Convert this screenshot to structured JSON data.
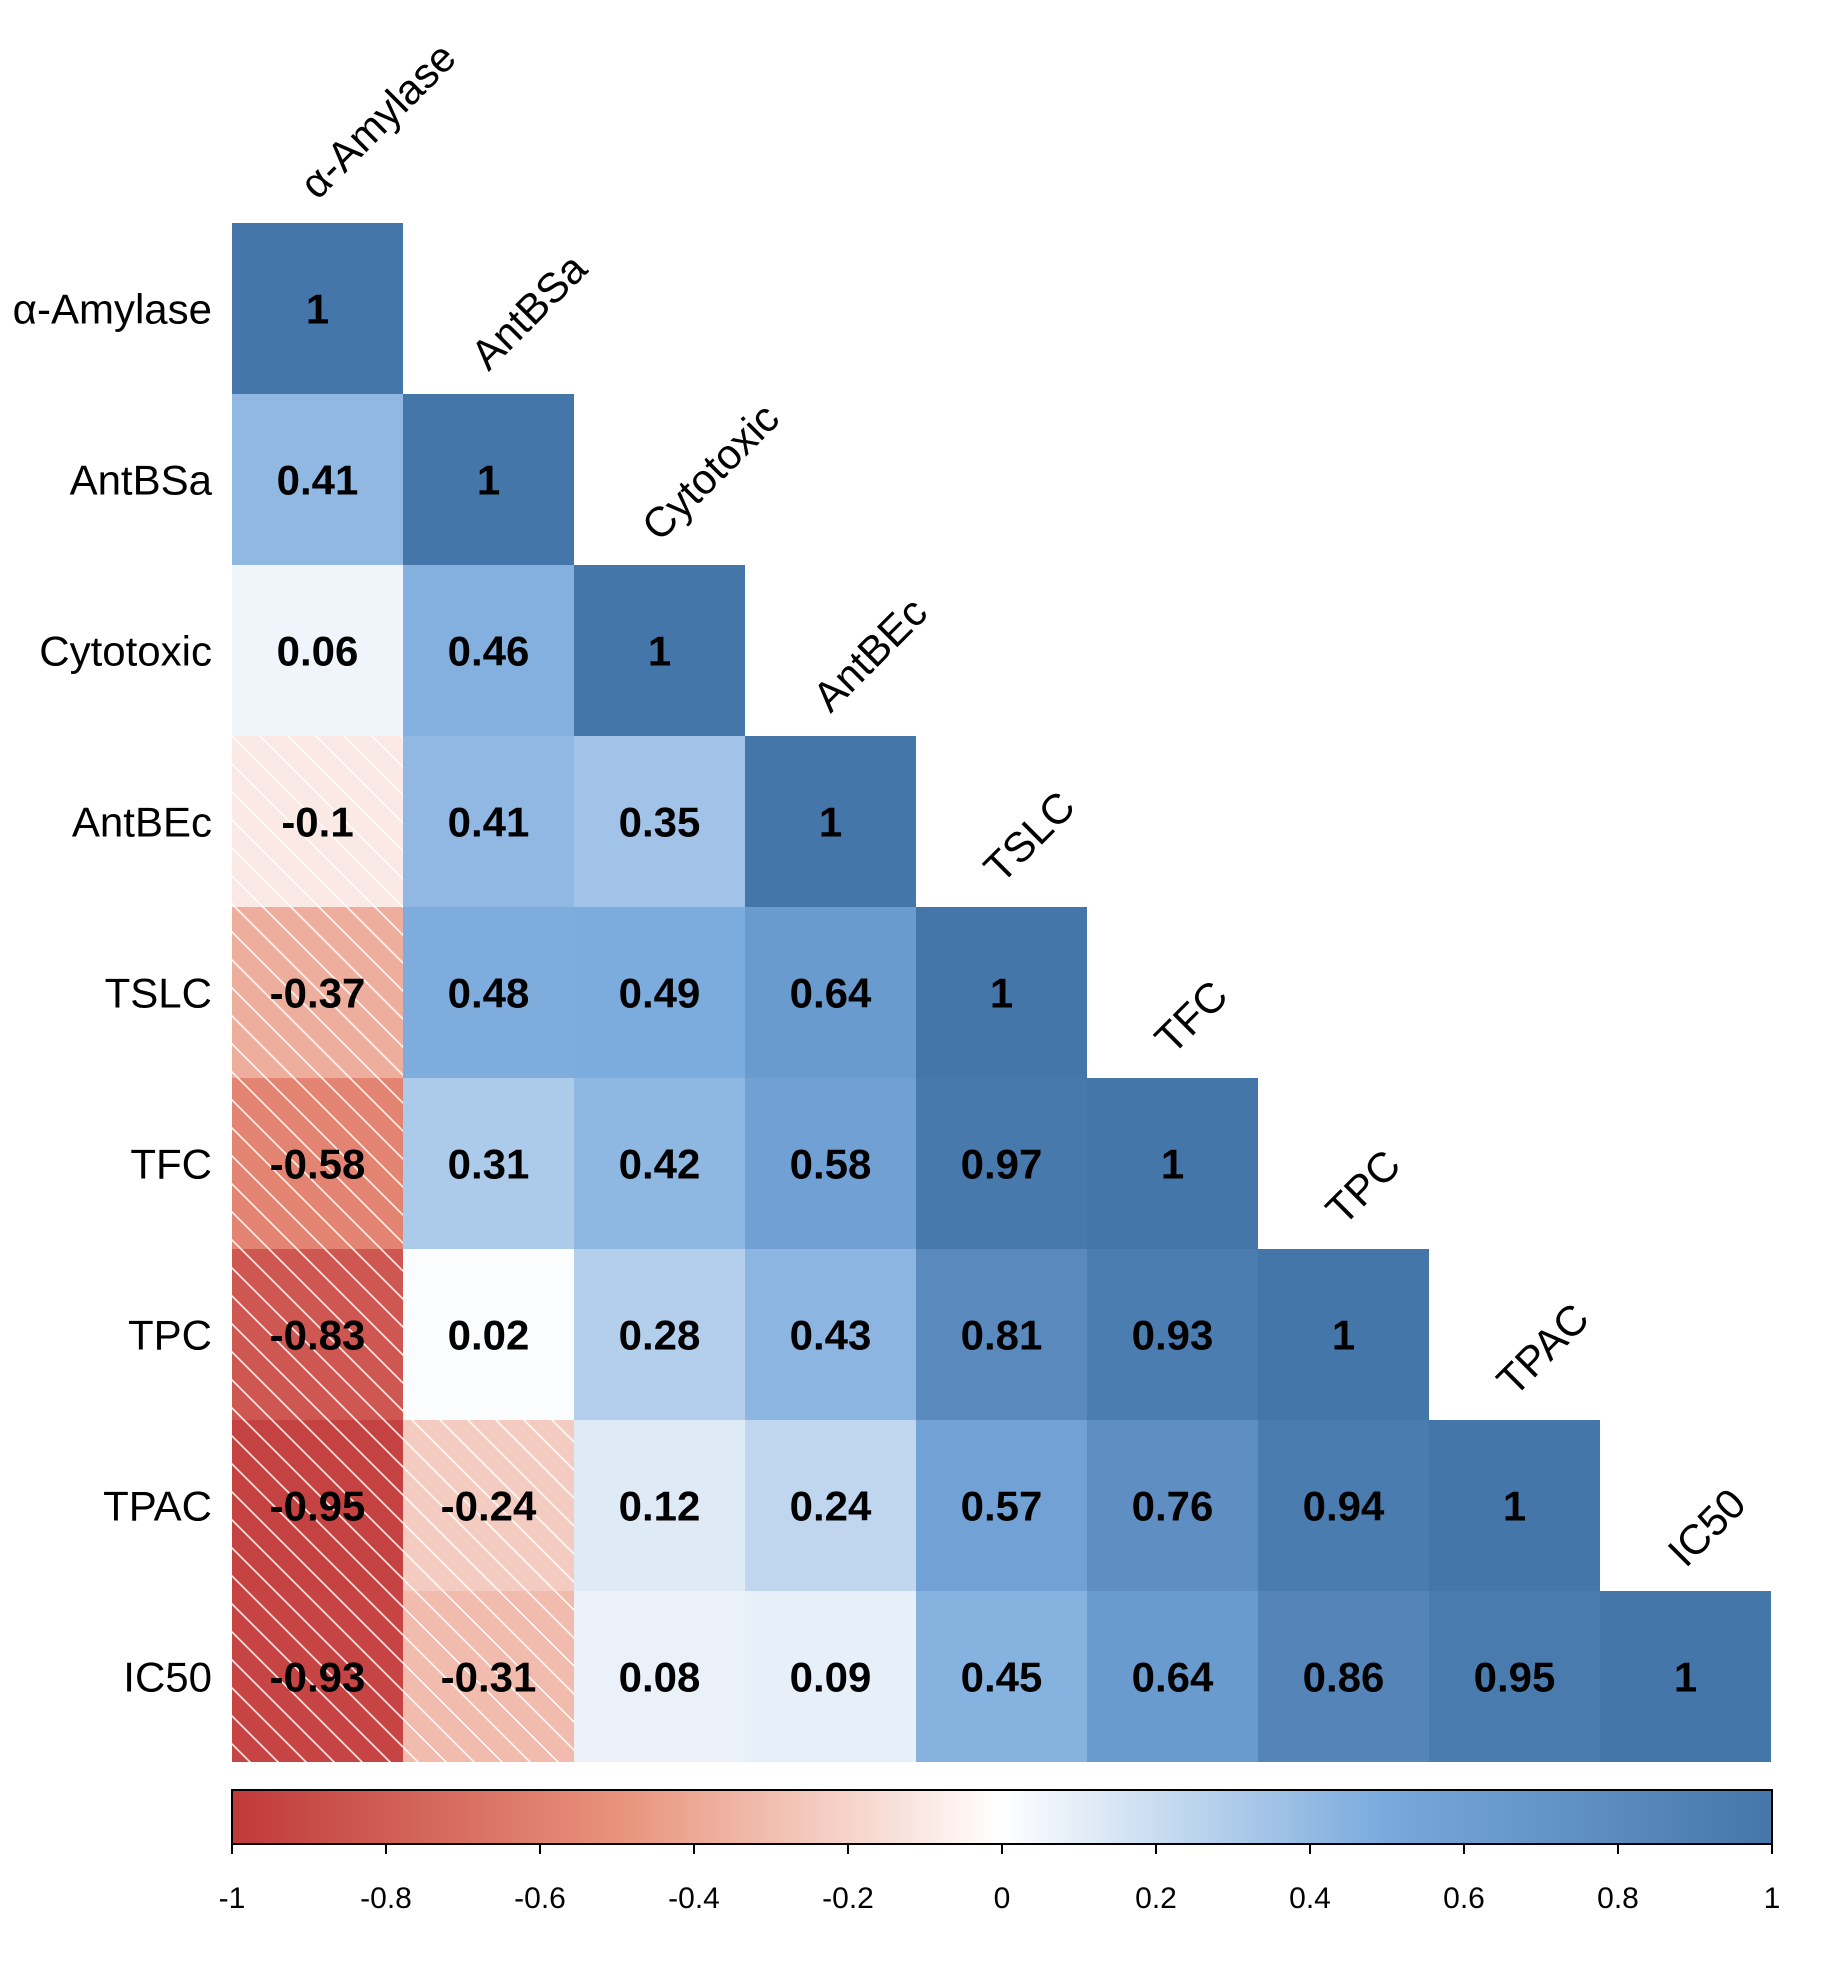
{
  "chart_data": {
    "type": "heatmap",
    "subtype": "lower-triangular correlation matrix",
    "variables": [
      "α-Amylase",
      "AntBSa",
      "Cytotoxic",
      "AntBEc",
      "TSLC",
      "TFC",
      "TPC",
      "TPAC",
      "IC50"
    ],
    "matrix": [
      [
        1
      ],
      [
        0.41,
        1
      ],
      [
        0.06,
        0.46,
        1
      ],
      [
        -0.1,
        0.41,
        0.35,
        1
      ],
      [
        -0.37,
        0.48,
        0.49,
        0.64,
        1
      ],
      [
        -0.58,
        0.31,
        0.42,
        0.58,
        0.97,
        1
      ],
      [
        -0.83,
        0.02,
        0.28,
        0.43,
        0.81,
        0.93,
        1
      ],
      [
        -0.95,
        -0.24,
        0.12,
        0.24,
        0.57,
        0.76,
        0.94,
        1
      ],
      [
        -0.93,
        -0.31,
        0.08,
        0.09,
        0.45,
        0.64,
        0.86,
        0.95,
        1
      ]
    ],
    "value_labels": [
      [
        "1"
      ],
      [
        "0.41",
        "1"
      ],
      [
        "0.06",
        "0.46",
        "1"
      ],
      [
        "-0.1",
        "0.41",
        "0.35",
        "1"
      ],
      [
        "-0.37",
        "0.48",
        "0.49",
        "0.64",
        "1"
      ],
      [
        "-0.58",
        "0.31",
        "0.42",
        "0.58",
        "0.97",
        "1"
      ],
      [
        "-0.83",
        "0.02",
        "0.28",
        "0.43",
        "0.81",
        "0.93",
        "1"
      ],
      [
        "-0.95",
        "-0.24",
        "0.12",
        "0.24",
        "0.57",
        "0.76",
        "0.94",
        "1"
      ],
      [
        "-0.93",
        "-0.31",
        "0.08",
        "0.09",
        "0.45",
        "0.64",
        "0.86",
        "0.95",
        "1"
      ]
    ],
    "negative_cells_hatched": true,
    "colorbar": {
      "range": [
        -1,
        1
      ],
      "ticks": [
        -1,
        -0.8,
        -0.6,
        -0.4,
        -0.2,
        0,
        0.2,
        0.4,
        0.6,
        0.8,
        1
      ],
      "tick_labels": [
        "-1",
        "-0.8",
        "-0.6",
        "-0.4",
        "-0.2",
        "0",
        "0.2",
        "0.4",
        "0.6",
        "0.8",
        "1"
      ],
      "orientation": "horizontal",
      "placement": "bottom"
    },
    "colors": {
      "negative_end": "#c0393b",
      "negative_mid": "#e8927b",
      "neutral": "#ffffff",
      "positive_mid": "#79a9dc",
      "positive_end": "#4576aa",
      "hatch": "#ffffff"
    }
  }
}
